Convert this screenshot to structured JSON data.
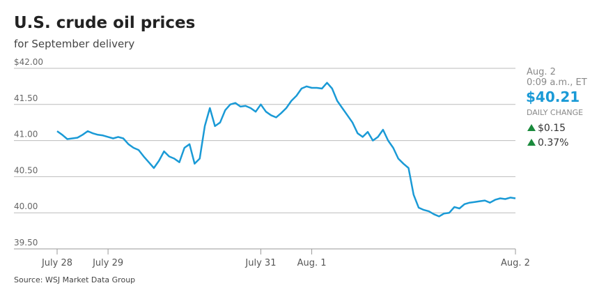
{
  "chart_data": {
    "type": "line",
    "title": "U.S. crude oil prices",
    "subtitle": "for September delivery",
    "source": "Source: WSJ Market Data Group",
    "color": "#1a9ad6",
    "grid": true,
    "x": [
      0,
      1,
      2,
      3,
      4,
      5,
      6,
      7,
      8,
      9,
      10,
      11,
      12,
      13,
      14,
      15,
      16,
      17,
      18,
      19,
      20,
      21,
      22,
      23,
      24,
      25,
      26,
      27,
      28,
      29,
      30,
      31,
      32,
      33,
      34,
      35,
      36,
      37,
      38,
      39,
      40,
      41,
      42,
      43,
      44,
      45,
      46,
      47,
      48,
      49,
      50,
      51,
      52,
      53,
      54,
      55,
      56,
      57,
      58,
      59,
      60,
      61,
      62,
      63,
      64,
      65,
      66,
      67,
      68,
      69,
      70,
      71,
      72,
      73,
      74,
      75,
      76,
      77,
      78,
      79,
      80,
      81,
      82,
      83,
      84,
      85,
      86,
      87,
      88,
      89,
      90
    ],
    "values": [
      41.13,
      41.08,
      41.02,
      41.03,
      41.04,
      41.08,
      41.13,
      41.1,
      41.08,
      41.07,
      41.05,
      41.03,
      41.05,
      41.03,
      40.95,
      40.9,
      40.87,
      40.78,
      40.7,
      40.62,
      40.72,
      40.85,
      40.78,
      40.75,
      40.7,
      40.9,
      40.95,
      40.68,
      40.75,
      41.2,
      41.45,
      41.2,
      41.25,
      41.42,
      41.5,
      41.52,
      41.47,
      41.48,
      41.45,
      41.4,
      41.5,
      41.4,
      41.35,
      41.32,
      41.38,
      41.45,
      41.55,
      41.62,
      41.72,
      41.75,
      41.73,
      41.73,
      41.72,
      41.8,
      41.72,
      41.55,
      41.45,
      41.35,
      41.25,
      41.1,
      41.05,
      41.12,
      41.0,
      41.05,
      41.15,
      41.0,
      40.9,
      40.75,
      40.68,
      40.62,
      40.25,
      40.07,
      40.04,
      40.02,
      39.98,
      39.95,
      39.99,
      40.0,
      40.08,
      40.06,
      40.12,
      40.14,
      40.15,
      40.16,
      40.17,
      40.14,
      40.18,
      40.2,
      40.19,
      40.21,
      40.2
    ],
    "xlim": [
      0,
      90
    ],
    "xticks": [
      {
        "value": 0,
        "label": "July 28"
      },
      {
        "value": 10,
        "label": "July 29"
      },
      {
        "value": 40,
        "label": "July 31"
      },
      {
        "value": 50,
        "label": "Aug. 1"
      },
      {
        "value": 90,
        "label": "Aug. 2"
      }
    ],
    "ylim": [
      39.5,
      42
    ],
    "yticks": [
      {
        "value": 42,
        "label": "$42.00"
      },
      {
        "value": 41.5,
        "label": "41.50"
      },
      {
        "value": 41,
        "label": "41.00"
      },
      {
        "value": 40.5,
        "label": "40.50"
      },
      {
        "value": 40,
        "label": "40.00"
      },
      {
        "value": 39.5,
        "label": "39.50"
      }
    ],
    "quote": {
      "date": "Aug. 2",
      "time": "0:09 a.m., ET",
      "price": "$40.21",
      "change_label": "DAILY CHANGE",
      "change": "$0.15",
      "change_pct": "0.37%"
    }
  }
}
